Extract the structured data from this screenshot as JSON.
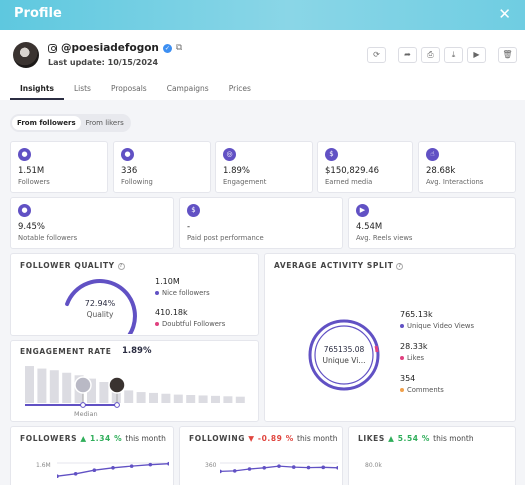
{
  "window": {
    "title": "Profile",
    "close_icon": "close-icon"
  },
  "profile": {
    "handle": "@poesiadefogon",
    "last_update": "Last update: 10/15/2024",
    "platform_icon": "instagram-icon"
  },
  "toolbar": [
    "refresh-icon",
    "share-icon",
    "print-icon",
    "download-icon",
    "play-icon",
    "delete-icon"
  ],
  "tabs": [
    {
      "label": "Insights",
      "active": true
    },
    {
      "label": "Lists",
      "active": false
    },
    {
      "label": "Proposals",
      "active": false
    },
    {
      "label": "Campaigns",
      "active": false
    },
    {
      "label": "Prices",
      "active": false
    }
  ],
  "audience_toggle": {
    "options": [
      "From followers",
      "From likers"
    ],
    "selected": "From followers"
  },
  "stats_row1": [
    {
      "value": "1.51M",
      "label": "Followers",
      "icon": "user-icon"
    },
    {
      "value": "336",
      "label": "Following",
      "icon": "user-icon"
    },
    {
      "value": "1.89%",
      "label": "Engagement",
      "icon": "target-icon"
    },
    {
      "value": "$150,829.46",
      "label": "Earned media",
      "icon": "dollar-icon"
    },
    {
      "value": "28.68k",
      "label": "Avg. Interactions",
      "icon": "hand-icon"
    }
  ],
  "stats_row2": [
    {
      "value": "9.45%",
      "label": "Notable followers",
      "icon": "user-icon"
    },
    {
      "value": "-",
      "label": "Paid post performance",
      "icon": "dollar-icon"
    },
    {
      "value": "4.54M",
      "label": "Avg. Reels views",
      "icon": "play-icon"
    }
  ],
  "follower_quality": {
    "title": "FOLLOWER QUALITY",
    "percent": "72.94%",
    "center_label": "Quality",
    "quality_fraction": 0.7294,
    "nice_value": "1.10M",
    "nice_label": "Nice followers",
    "doubtful_value": "410.18k",
    "doubtful_label": "Doubtful Followers"
  },
  "engagement_rate": {
    "title": "ENGAGEMENT RATE",
    "value": "1.89%",
    "median_label": "Median",
    "bars": [
      0.88,
      0.82,
      0.78,
      0.72,
      0.66,
      0.58,
      0.5,
      0.38,
      0.3,
      0.26,
      0.24,
      0.22,
      0.2,
      0.19,
      0.18,
      0.17,
      0.16,
      0.15
    ]
  },
  "activity_split": {
    "title": "AVERAGE ACTIVITY SPLIT",
    "center_value": "765135.08",
    "center_label": "Unique Vi...",
    "items": [
      {
        "value": "765.13k",
        "label": "Unique Video Views",
        "color": "#6151c4"
      },
      {
        "value": "28.33k",
        "label": "Likes",
        "color": "#e0407f"
      },
      {
        "value": "354",
        "label": "Comments",
        "color": "#f0a04b"
      }
    ]
  },
  "trends": [
    {
      "title": "FOLLOWERS",
      "change": "1.34 %",
      "direction": "up",
      "suffix": "this month",
      "axis": "1.6M",
      "points": [
        0.2,
        0.3,
        0.45,
        0.55,
        0.62,
        0.68,
        0.72
      ]
    },
    {
      "title": "FOLLOWING",
      "change": "-0.89 %",
      "direction": "down",
      "suffix": "this month",
      "axis": "360",
      "points": [
        0.4,
        0.42,
        0.5,
        0.55,
        0.62,
        0.58,
        0.56,
        0.57,
        0.55
      ]
    },
    {
      "title": "LIKES",
      "change": "5.54 %",
      "direction": "up",
      "suffix": "this month",
      "axis": "80.0k",
      "points": []
    }
  ],
  "colors": {
    "accent": "#6151c4",
    "pink": "#e0407f",
    "header": "#6fcde2"
  }
}
